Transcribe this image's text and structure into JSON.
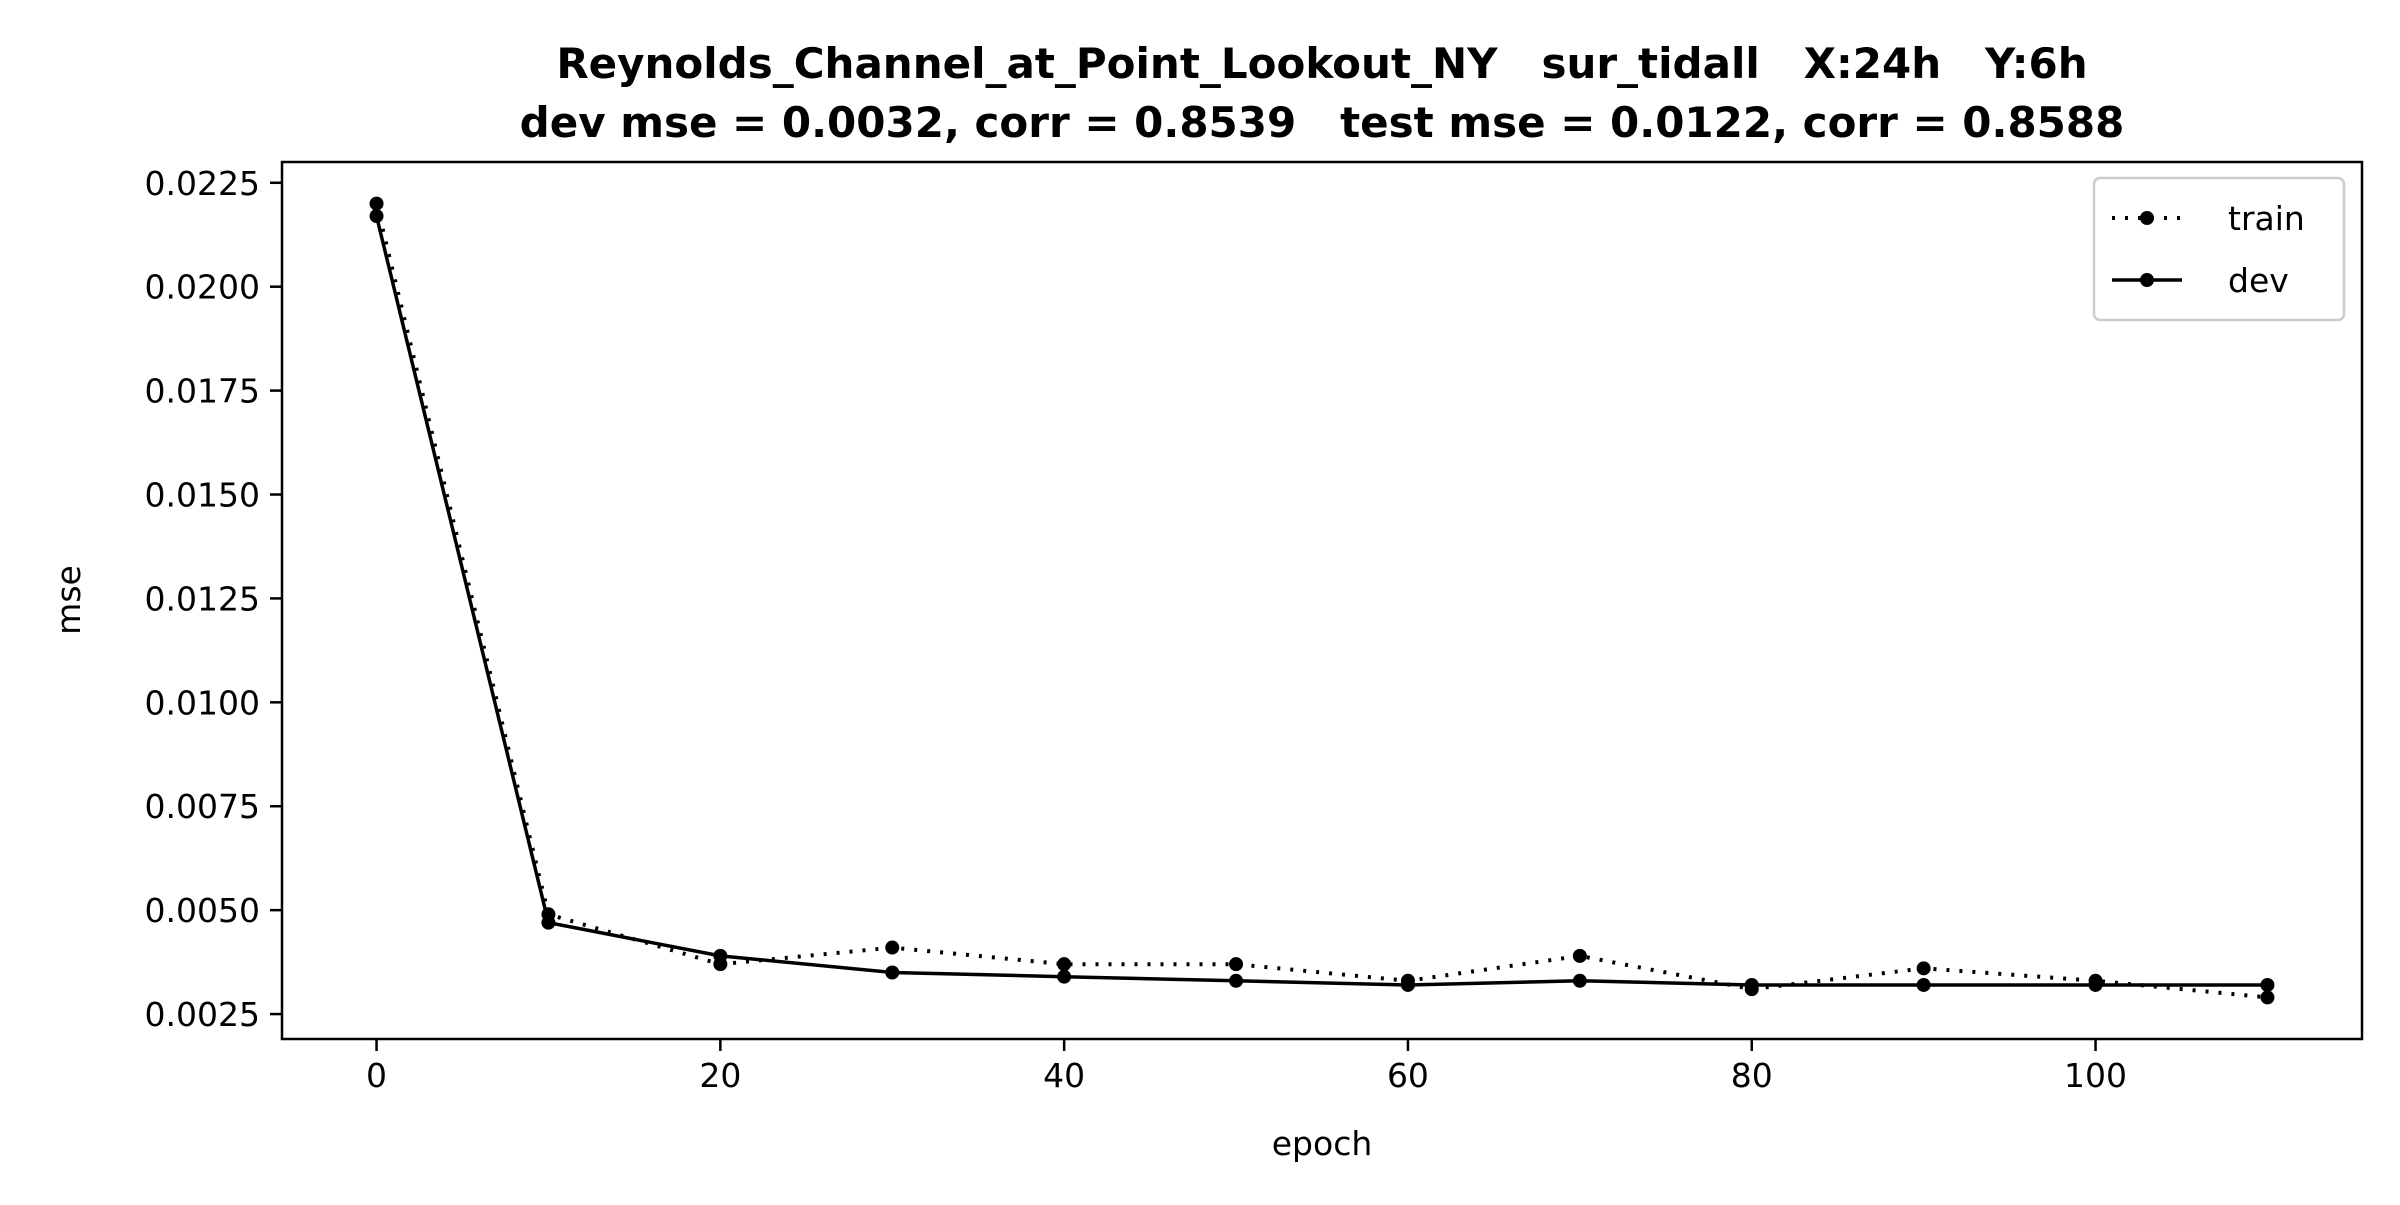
{
  "chart_data": {
    "type": "line",
    "title": "Reynolds_Channel_at_Point_Lookout_NY   sur_tidall   X:24h   Y:6h",
    "subtitle": "dev mse = 0.0032, corr = 0.8539   test mse = 0.0122, corr = 0.8588",
    "xlabel": "epoch",
    "ylabel": "mse",
    "xlim": [
      -5.5,
      115.5
    ],
    "ylim": [
      0.0019,
      0.023
    ],
    "x": [
      0,
      10,
      20,
      30,
      40,
      50,
      60,
      70,
      80,
      90,
      100,
      110
    ],
    "x_ticks": [
      0,
      20,
      40,
      60,
      80,
      100
    ],
    "x_tick_labels": [
      "0",
      "20",
      "40",
      "60",
      "80",
      "100"
    ],
    "y_ticks": [
      0.0025,
      0.005,
      0.0075,
      0.01,
      0.0125,
      0.015,
      0.0175,
      0.02,
      0.0225
    ],
    "y_tick_labels": [
      "0.0025",
      "0.0050",
      "0.0075",
      "0.0100",
      "0.0125",
      "0.0150",
      "0.0175",
      "0.0200",
      "0.0225"
    ],
    "grid": false,
    "legend_position": "top-right",
    "series": [
      {
        "name": "train",
        "line_style": "dotted",
        "marker": "circle",
        "color": "#000000",
        "values": [
          0.022,
          0.0049,
          0.0037,
          0.0041,
          0.0037,
          0.0037,
          0.0033,
          0.0039,
          0.0031,
          0.0036,
          0.0033,
          0.0029
        ]
      },
      {
        "name": "dev",
        "line_style": "solid",
        "marker": "circle",
        "color": "#000000",
        "values": [
          0.0217,
          0.0047,
          0.0039,
          0.0035,
          0.0034,
          0.0033,
          0.0032,
          0.0033,
          0.0032,
          0.0032,
          0.0032,
          0.0032
        ]
      }
    ]
  }
}
